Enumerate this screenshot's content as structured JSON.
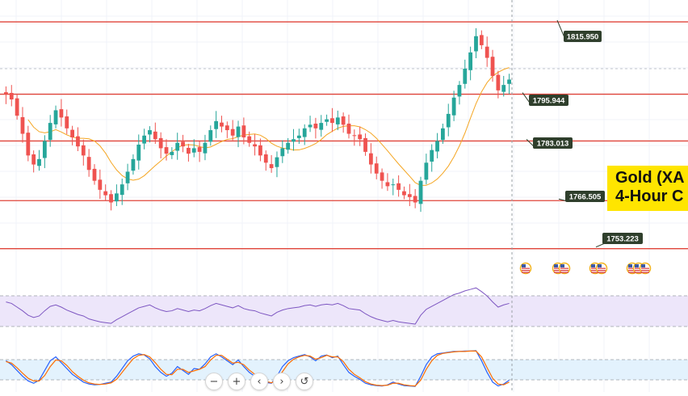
{
  "title": {
    "line1": "Gold (XA",
    "line2": "4-Hour C"
  },
  "colors": {
    "background": "#ffffff",
    "level_line": "#e0443a",
    "up_candle": "#26a69a",
    "down_candle": "#ef5350",
    "moving_average": "#f5a623",
    "rsi_line": "#7e57c2",
    "rsi_band": "#ede6fa",
    "stoch_k": "#2962ff",
    "stoch_d": "#ff6d00",
    "stoch_band": "#e3f2fd",
    "label_bg": "#2f3f2c",
    "title_bg": "#ffe500"
  },
  "chart_data": {
    "type": "candlestick",
    "ylim": [
      1746,
      1822
    ],
    "grid": true,
    "horizontal_levels": [
      {
        "value": 1815.95,
        "label": "1815.950"
      },
      {
        "value": 1795.944,
        "label": "1795.944"
      },
      {
        "value": 1783.013,
        "label": "1783.013"
      },
      {
        "value": 1766.505,
        "label": "1766.505"
      },
      {
        "value": 1753.223,
        "label": "1753.223"
      }
    ],
    "close": [
      1796.0,
      1794.5,
      1790.0,
      1785.0,
      1779.0,
      1776.5,
      1778.0,
      1783.0,
      1788.0,
      1791.5,
      1789.5,
      1786.5,
      1784.0,
      1781.5,
      1779.0,
      1775.0,
      1772.0,
      1769.5,
      1768.0,
      1766.0,
      1768.5,
      1771.0,
      1774.5,
      1778.0,
      1782.0,
      1784.5,
      1786.0,
      1783.5,
      1781.0,
      1779.5,
      1780.0,
      1782.5,
      1781.5,
      1779.5,
      1781.0,
      1780.0,
      1782.5,
      1786.0,
      1788.5,
      1787.0,
      1786.0,
      1784.5,
      1787.0,
      1784.0,
      1782.5,
      1781.5,
      1779.0,
      1777.0,
      1775.5,
      1778.5,
      1781.0,
      1782.5,
      1783.5,
      1784.5,
      1786.5,
      1787.5,
      1786.5,
      1788.0,
      1789.0,
      1788.0,
      1789.5,
      1787.5,
      1785.0,
      1784.5,
      1783.5,
      1780.0,
      1776.5,
      1774.0,
      1772.0,
      1770.5,
      1771.0,
      1769.5,
      1768.0,
      1767.5,
      1766.0,
      1772.0,
      1777.0,
      1780.5,
      1783.0,
      1786.5,
      1790.5,
      1795.0,
      1798.5,
      1803.0,
      1807.5,
      1812.0,
      1809.5,
      1806.0,
      1801.0,
      1797.0,
      1798.5,
      1800.0
    ],
    "rsi": [
      62,
      60,
      55,
      50,
      44,
      41,
      43,
      50,
      56,
      58,
      55,
      51,
      48,
      45,
      43,
      39,
      37,
      35,
      34,
      33,
      38,
      42,
      46,
      50,
      54,
      56,
      58,
      54,
      51,
      49,
      50,
      53,
      51,
      49,
      51,
      50,
      53,
      57,
      60,
      58,
      56,
      54,
      57,
      53,
      51,
      50,
      47,
      45,
      43,
      48,
      51,
      53,
      54,
      55,
      57,
      58,
      56,
      58,
      59,
      58,
      60,
      57,
      53,
      52,
      51,
      46,
      42,
      39,
      37,
      35,
      37,
      35,
      34,
      33,
      32,
      44,
      52,
      56,
      60,
      64,
      68,
      72,
      74,
      77,
      79,
      81,
      76,
      70,
      62,
      55,
      58,
      60
    ],
    "stoch_k": [
      70,
      60,
      45,
      30,
      18,
      12,
      20,
      45,
      70,
      80,
      65,
      50,
      35,
      25,
      15,
      10,
      8,
      9,
      12,
      15,
      30,
      50,
      70,
      82,
      88,
      85,
      75,
      55,
      40,
      30,
      38,
      55,
      45,
      35,
      50,
      48,
      62,
      80,
      88,
      80,
      70,
      60,
      72,
      55,
      40,
      30,
      20,
      14,
      12,
      30,
      55,
      70,
      78,
      82,
      86,
      80,
      70,
      82,
      85,
      78,
      82,
      60,
      40,
      30,
      22,
      12,
      8,
      6,
      5,
      8,
      15,
      10,
      6,
      5,
      4,
      30,
      60,
      80,
      88,
      90,
      92,
      94,
      94,
      95,
      95,
      96,
      70,
      40,
      15,
      5,
      10,
      20
    ],
    "stoch_d": [
      68,
      64,
      52,
      38,
      25,
      18,
      18,
      32,
      55,
      72,
      70,
      58,
      42,
      30,
      20,
      13,
      10,
      9,
      10,
      13,
      22,
      40,
      58,
      75,
      84,
      86,
      80,
      65,
      48,
      35,
      34,
      48,
      48,
      40,
      44,
      48,
      55,
      72,
      84,
      84,
      74,
      64,
      66,
      60,
      46,
      35,
      25,
      17,
      13,
      22,
      42,
      62,
      74,
      80,
      84,
      82,
      74,
      78,
      84,
      80,
      80,
      68,
      48,
      35,
      26,
      16,
      10,
      7,
      6,
      7,
      12,
      12,
      8,
      6,
      5,
      20,
      48,
      70,
      84,
      89,
      91,
      93,
      94,
      94,
      95,
      95,
      80,
      52,
      25,
      10,
      8,
      15
    ]
  },
  "zoom_controls": [
    {
      "name": "zoom-out-button",
      "label": "−"
    },
    {
      "name": "zoom-in-button",
      "label": "+"
    },
    {
      "name": "scroll-left-button",
      "label": "‹"
    },
    {
      "name": "scroll-right-button",
      "label": "›"
    },
    {
      "name": "reset-chart-button",
      "label": "↺"
    }
  ],
  "event_icons": [
    {
      "name": "economic-event-us-flag-icon",
      "count": 1
    },
    {
      "name": "economic-events-us-flags-icon",
      "count": 2
    },
    {
      "name": "economic-events-us-flags-icon",
      "count": 2
    },
    {
      "name": "economic-events-us-flags-icon",
      "count": 3
    }
  ]
}
